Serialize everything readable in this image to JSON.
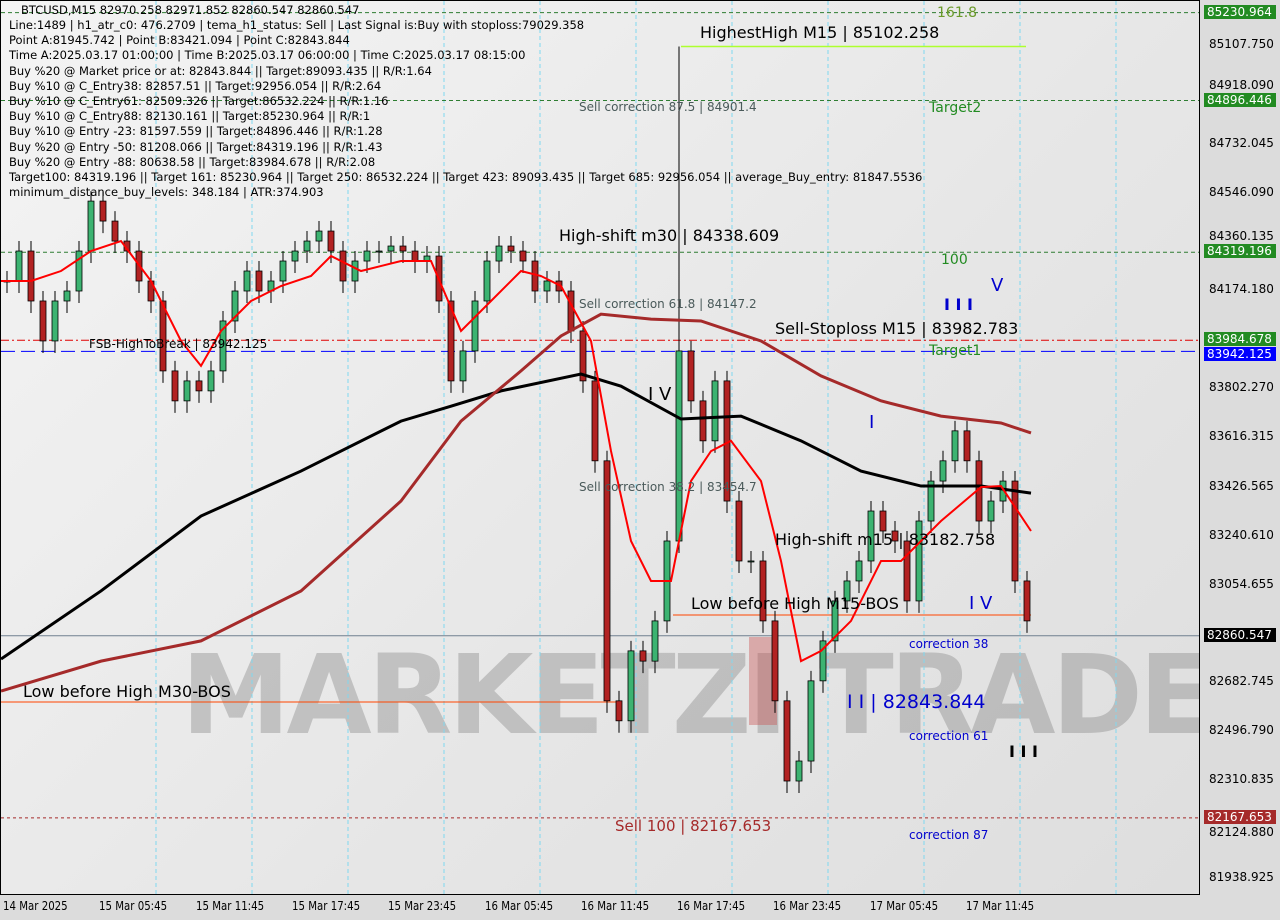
{
  "header": {
    "symbol_line": "BTCUSD,M15  82970.258 82971.852 82860.547 82860.547",
    "info_lines": [
      "Line:1489 | h1_atr_c0: 476.2709 | tema_h1_status: Sell | Last Signal is:Buy with stoploss:79029.358",
      "Point A:81945.742 | Point B:83421.094 | Point C:82843.844",
      "Time A:2025.03.17 01:00:00 | Time B:2025.03.17 06:00:00 | Time C:2025.03.17 08:15:00",
      "Buy %20 @ Market price or at: 82843.844 || Target:89093.435 || R/R:1.64",
      "Buy %10 @ C_Entry38: 82857.51 || Target:92956.054 || R/R:2.64",
      "Buy %10 @ C_Entry61: 82509.326 || Target:86532.224 || R/R:1.16",
      "Buy %10 @ C_Entry88: 82130.161 || Target:85230.964 || R/R:1",
      "Buy %10 @ Entry -23: 81597.559 || Target:84896.446 || R/R:1.28",
      "Buy %20 @ Entry -50: 81208.066 || Target:84319.196 || R/R:1.43",
      "Buy %20 @ Entry -88: 80638.58 || Target:83984.678 || R/R:2.08",
      "Target100: 84319.196 || Target 161: 85230.964 || Target 250: 86532.224 || Target 423: 89093.435 || Target 685: 92956.054 || average_Buy_entry: 81847.5536",
      "minimum_distance_buy_levels: 348.184 | ATR:374.903"
    ]
  },
  "annotations": {
    "highest_high": "HighestHigh   M15 | 85102.258",
    "fib_161": "161.8",
    "target2": "Target2",
    "fib_100": "100",
    "target1": "Target1",
    "sell_corr_875": "Sell correction 87.5 | 84901.4",
    "sell_corr_618": "Sell correction 61.8 | 84147.2",
    "sell_corr_382": "Sell correction 38.2 | 83454.7",
    "high_shift_m30": "High-shift m30 | 84338.609",
    "sell_stoploss": "Sell-Stoploss M15 | 83982.783",
    "fsb": "FSB-HighToBreak | 83942.125",
    "high_shift_m15": "High-shift m15 | 83182.758",
    "low_before_high_m15": "Low before High   M15-BOS",
    "low_before_high_m30": "Low before High   M30-BOS",
    "wave_iv_1": "I V",
    "wave_i": "I",
    "wave_v": "V",
    "wave_iii": "I I I",
    "wave_iv_2": "I V",
    "wave_iii_bottom": "I I I",
    "point_c": "I I | 82843.844",
    "correction_38": "correction 38",
    "correction_61": "correction 61",
    "correction_87": "correction 87",
    "sell_100": "Sell 100 | 82167.653"
  },
  "watermark": "MARKETZI TRADE",
  "colors": {
    "bull": "#3cb371",
    "bear": "#b22222",
    "ma_fast": "#ff0000",
    "ma_mid": "#a52a2a",
    "ma_slow": "#000000",
    "target_tag": "#228b22",
    "fsb_tag": "#0000ff",
    "sell_tag": "#a52a2a",
    "last_tag": "#000000"
  },
  "chart_data": {
    "type": "candlestick",
    "symbol": "BTCUSD",
    "timeframe": "M15",
    "ylim": [
      81860,
      85290
    ],
    "y_ticks": [
      "85107.750",
      "84918.090",
      "84732.045",
      "84546.090",
      "84360.135",
      "84174.180",
      "83802.270",
      "83616.315",
      "83426.565",
      "83240.610",
      "83054.655",
      "82682.745",
      "82496.790",
      "82310.835",
      "82124.880",
      "81938.925"
    ],
    "x_ticks": [
      "14 Mar 2025",
      "15 Mar 05:45",
      "15 Mar 11:45",
      "15 Mar 17:45",
      "15 Mar 23:45",
      "16 Mar 05:45",
      "16 Mar 11:45",
      "16 Mar 17:45",
      "16 Mar 23:45",
      "17 Mar 05:45",
      "17 Mar 11:45"
    ],
    "closes": [
      84210,
      84324,
      84134,
      83982,
      84134,
      84172,
      84324,
      84514,
      84438,
      84362,
      84324,
      84210,
      84134,
      83868,
      83754,
      83830,
      83792,
      83868,
      84058,
      84172,
      84248,
      84172,
      84210,
      84286,
      84324,
      84362,
      84400,
      84324,
      84210,
      84286,
      84324,
      84324,
      84343,
      84324,
      84286,
      84305,
      84134,
      83830,
      83944,
      84134,
      84286,
      84343,
      84324,
      84286,
      84172,
      84210,
      84172,
      84020,
      83830,
      83526,
      82613,
      82537,
      82803,
      82764,
      82917,
      83221,
      83944,
      83754,
      83602,
      83830,
      83373,
      83145,
      83145,
      82917,
      82613,
      82308,
      82384,
      82689,
      82841,
      82993,
      83069,
      83145,
      83335,
      83259,
      83221,
      82993,
      83297,
      83449,
      83526,
      83640,
      83526,
      83297,
      83373,
      83449,
      83069,
      82917
    ],
    "highest_high": 85102.258,
    "levels": [
      {
        "label": "85230.964",
        "price": 85230.964,
        "tag": "target_tag",
        "style": "green-dashed"
      },
      {
        "label": "84896.446",
        "price": 84896.446,
        "tag": "target_tag",
        "style": "green-dashed"
      },
      {
        "label": "84319.196",
        "price": 84319.196,
        "tag": "target_tag",
        "style": "green-dashed"
      },
      {
        "label": "83984.678",
        "price": 83984.678,
        "tag": "target_tag",
        "style": "red-dashdot"
      },
      {
        "label": "83942.125",
        "price": 83942.125,
        "tag": "fsb_tag",
        "style": "blue-dashed"
      },
      {
        "label": "82860.547",
        "price": 82860.547,
        "tag": "last_tag",
        "style": "grey-solid"
      },
      {
        "label": "82167.653",
        "price": 82167.653,
        "tag": "sell_tag",
        "style": "brown-dotted"
      }
    ],
    "ma_slow": [
      [
        0,
        82772
      ],
      [
        100,
        83031
      ],
      [
        200,
        83316
      ],
      [
        300,
        83487
      ],
      [
        400,
        83677
      ],
      [
        450,
        83734
      ],
      [
        500,
        83792
      ],
      [
        580,
        83856
      ],
      [
        620,
        83810
      ],
      [
        680,
        83685
      ],
      [
        740,
        83696
      ],
      [
        800,
        83602
      ],
      [
        860,
        83487
      ],
      [
        920,
        83430
      ],
      [
        980,
        83430
      ],
      [
        1030,
        83403
      ]
    ],
    "ma_mid": [
      [
        0,
        82650
      ],
      [
        100,
        82764
      ],
      [
        200,
        82841
      ],
      [
        300,
        83031
      ],
      [
        400,
        83373
      ],
      [
        460,
        83677
      ],
      [
        520,
        83868
      ],
      [
        560,
        84001
      ],
      [
        600,
        84084
      ],
      [
        650,
        84065
      ],
      [
        700,
        84058
      ],
      [
        760,
        83982
      ],
      [
        820,
        83849
      ],
      [
        880,
        83754
      ],
      [
        940,
        83696
      ],
      [
        1000,
        83670
      ],
      [
        1030,
        83632
      ]
    ],
    "ma_fast": [
      [
        0,
        84210
      ],
      [
        30,
        84210
      ],
      [
        60,
        84248
      ],
      [
        90,
        84324
      ],
      [
        120,
        84362
      ],
      [
        150,
        84210
      ],
      [
        180,
        83982
      ],
      [
        200,
        83887
      ],
      [
        220,
        84020
      ],
      [
        250,
        84134
      ],
      [
        280,
        84191
      ],
      [
        310,
        84229
      ],
      [
        330,
        84305
      ],
      [
        360,
        84248
      ],
      [
        400,
        84286
      ],
      [
        430,
        84286
      ],
      [
        460,
        84020
      ],
      [
        490,
        84134
      ],
      [
        520,
        84248
      ],
      [
        540,
        84229
      ],
      [
        560,
        84191
      ],
      [
        590,
        83982
      ],
      [
        610,
        83563
      ],
      [
        630,
        83221
      ],
      [
        650,
        83069
      ],
      [
        670,
        83069
      ],
      [
        690,
        83449
      ],
      [
        710,
        83563
      ],
      [
        730,
        83602
      ],
      [
        760,
        83449
      ],
      [
        780,
        83145
      ],
      [
        800,
        82764
      ],
      [
        820,
        82803
      ],
      [
        850,
        82917
      ],
      [
        880,
        83145
      ],
      [
        900,
        83145
      ],
      [
        940,
        83297
      ],
      [
        980,
        83426
      ],
      [
        1000,
        83430
      ],
      [
        1030,
        83259
      ]
    ]
  }
}
